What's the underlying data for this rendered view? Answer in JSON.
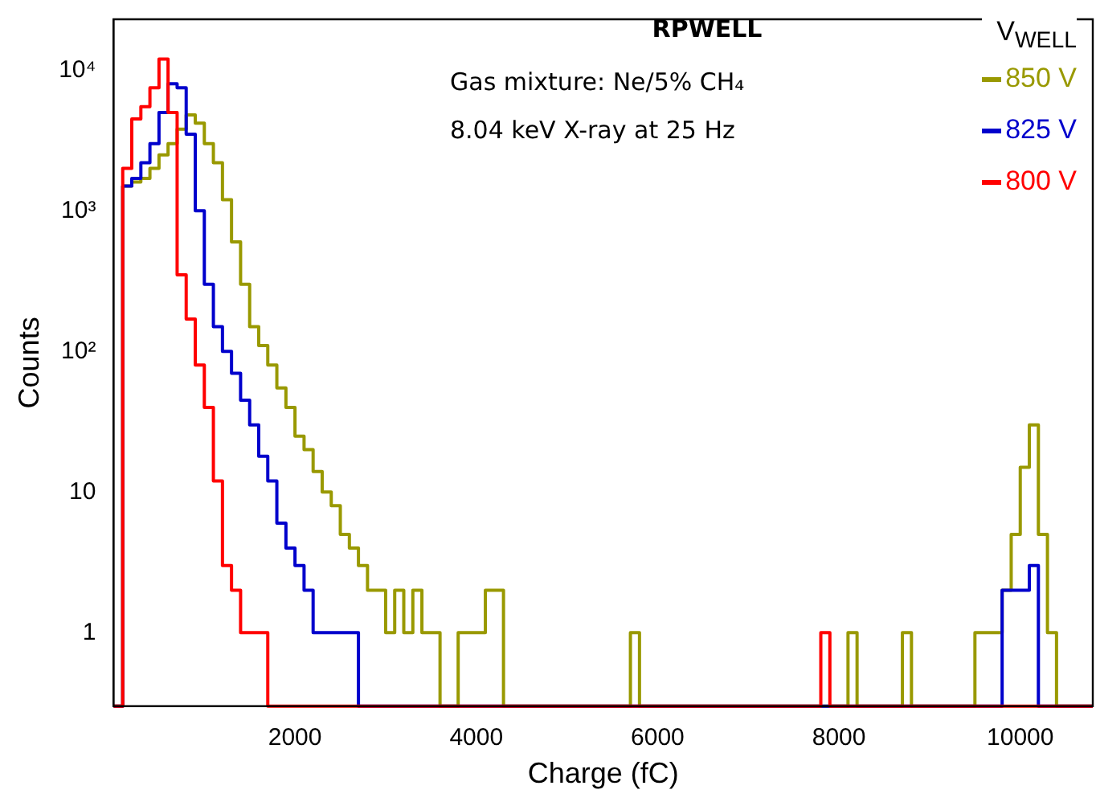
{
  "chart_data": {
    "type": "histogram",
    "title": "RPWELL",
    "xlabel": "Charge (fC)",
    "ylabel": "Counts",
    "legend_title": "V$_{WELL}$",
    "annotations": [
      "Gas mixture: Ne/5% CH₄",
      "8.04 keV X-ray at 25 Hz"
    ],
    "bins": [
      0,
      100,
      200,
      300,
      400,
      500,
      600,
      700,
      800,
      900,
      1000,
      1100,
      1200,
      1300,
      1400,
      1500,
      1600,
      1700,
      1800,
      1900,
      2000,
      2100,
      2200,
      2300,
      2400,
      2500,
      2600,
      2700,
      2800,
      2900,
      3000,
      3100,
      3200,
      3300,
      3400,
      3500,
      3600,
      3700,
      3800,
      3900,
      4000,
      4100,
      4200,
      4300,
      4400,
      4500,
      4600,
      4700,
      4800,
      4900,
      5000,
      5100,
      5200,
      5300,
      5400,
      5500,
      5600,
      5700,
      5800,
      5900,
      6000,
      6100,
      6200,
      6300,
      6400,
      6500,
      6600,
      6700,
      6800,
      6900,
      7000,
      7100,
      7200,
      7300,
      7400,
      7500,
      7600,
      7700,
      7800,
      7900,
      8000,
      8100,
      8200,
      8300,
      8400,
      8500,
      8600,
      8700,
      8800,
      8900,
      9000,
      9100,
      9200,
      9300,
      9400,
      9500,
      9600,
      9700,
      9800,
      9900,
      10000,
      10100,
      10200,
      10300,
      10400,
      10500,
      10600,
      10700,
      10800
    ],
    "series": [
      {
        "name": "850 V",
        "color": "#999900",
        "values": [
          null,
          1500,
          1600,
          1700,
          2000,
          2500,
          3000,
          3800,
          4800,
          4200,
          3000,
          2200,
          1200,
          600,
          300,
          150,
          110,
          80,
          55,
          40,
          25,
          20,
          14,
          10,
          8,
          5,
          4,
          3,
          2,
          2,
          1,
          2,
          1,
          2,
          1,
          1,
          null,
          null,
          1,
          1,
          1,
          2,
          2,
          null,
          null,
          null,
          null,
          null,
          null,
          null,
          null,
          null,
          null,
          null,
          null,
          null,
          null,
          1,
          null,
          null,
          null,
          null,
          null,
          null,
          null,
          null,
          null,
          null,
          null,
          null,
          null,
          null,
          null,
          null,
          null,
          null,
          null,
          null,
          null,
          null,
          null,
          1,
          null,
          null,
          null,
          null,
          null,
          1,
          null,
          null,
          null,
          null,
          null,
          null,
          null,
          1,
          1,
          1,
          2,
          5,
          15,
          30,
          5,
          1,
          null,
          null,
          null,
          null
        ]
      },
      {
        "name": "825 V",
        "color": "#0000cc",
        "values": [
          null,
          1500,
          1700,
          2200,
          3000,
          5000,
          8000,
          7500,
          3500,
          1000,
          300,
          150,
          100,
          70,
          45,
          30,
          18,
          12,
          6,
          4,
          3,
          2,
          1,
          1,
          1,
          1,
          1,
          null,
          null,
          null,
          null,
          null,
          null,
          null,
          null,
          null,
          null,
          null,
          null,
          null,
          null,
          null,
          null,
          null,
          null,
          null,
          null,
          null,
          null,
          null,
          null,
          null,
          null,
          null,
          null,
          null,
          null,
          null,
          null,
          null,
          null,
          null,
          null,
          null,
          null,
          null,
          null,
          null,
          null,
          null,
          null,
          null,
          null,
          null,
          null,
          null,
          null,
          null,
          null,
          null,
          null,
          null,
          null,
          null,
          null,
          null,
          null,
          null,
          null,
          null,
          null,
          null,
          null,
          null,
          null,
          null,
          null,
          null,
          2,
          2,
          2,
          3,
          null,
          null,
          null,
          null,
          null,
          null
        ]
      },
      {
        "name": "800 V",
        "color": "#ff0000",
        "values": [
          null,
          2000,
          4500,
          5500,
          7500,
          12000,
          5000,
          350,
          170,
          80,
          40,
          12,
          3,
          2,
          1,
          1,
          1,
          null,
          null,
          null,
          null,
          null,
          null,
          null,
          null,
          null,
          null,
          null,
          null,
          null,
          null,
          null,
          null,
          null,
          null,
          null,
          null,
          null,
          null,
          null,
          null,
          null,
          null,
          null,
          null,
          null,
          null,
          null,
          null,
          null,
          null,
          null,
          null,
          null,
          null,
          null,
          null,
          null,
          null,
          null,
          null,
          null,
          null,
          null,
          null,
          null,
          null,
          null,
          null,
          null,
          null,
          null,
          null,
          null,
          null,
          null,
          null,
          null,
          1,
          null,
          null,
          null,
          null,
          null,
          null,
          null,
          null,
          null,
          null,
          null,
          null,
          null,
          null,
          null,
          null,
          null,
          null,
          null,
          null,
          null,
          null,
          null,
          null,
          null,
          null,
          null,
          null,
          null
        ]
      }
    ],
    "xlim": [
      0,
      10800
    ],
    "xticks": [
      2000,
      4000,
      6000,
      8000,
      10000
    ],
    "ylim": [
      0.3,
      23000
    ],
    "yticks": [
      {
        "value": 1,
        "label": "1"
      },
      {
        "value": 10,
        "label": "10"
      },
      {
        "value": 100,
        "label": "10²"
      },
      {
        "value": 1000,
        "label": "10³"
      },
      {
        "value": 10000,
        "label": "10⁴"
      }
    ],
    "log": "y",
    "grid": false,
    "legend": "top right"
  }
}
